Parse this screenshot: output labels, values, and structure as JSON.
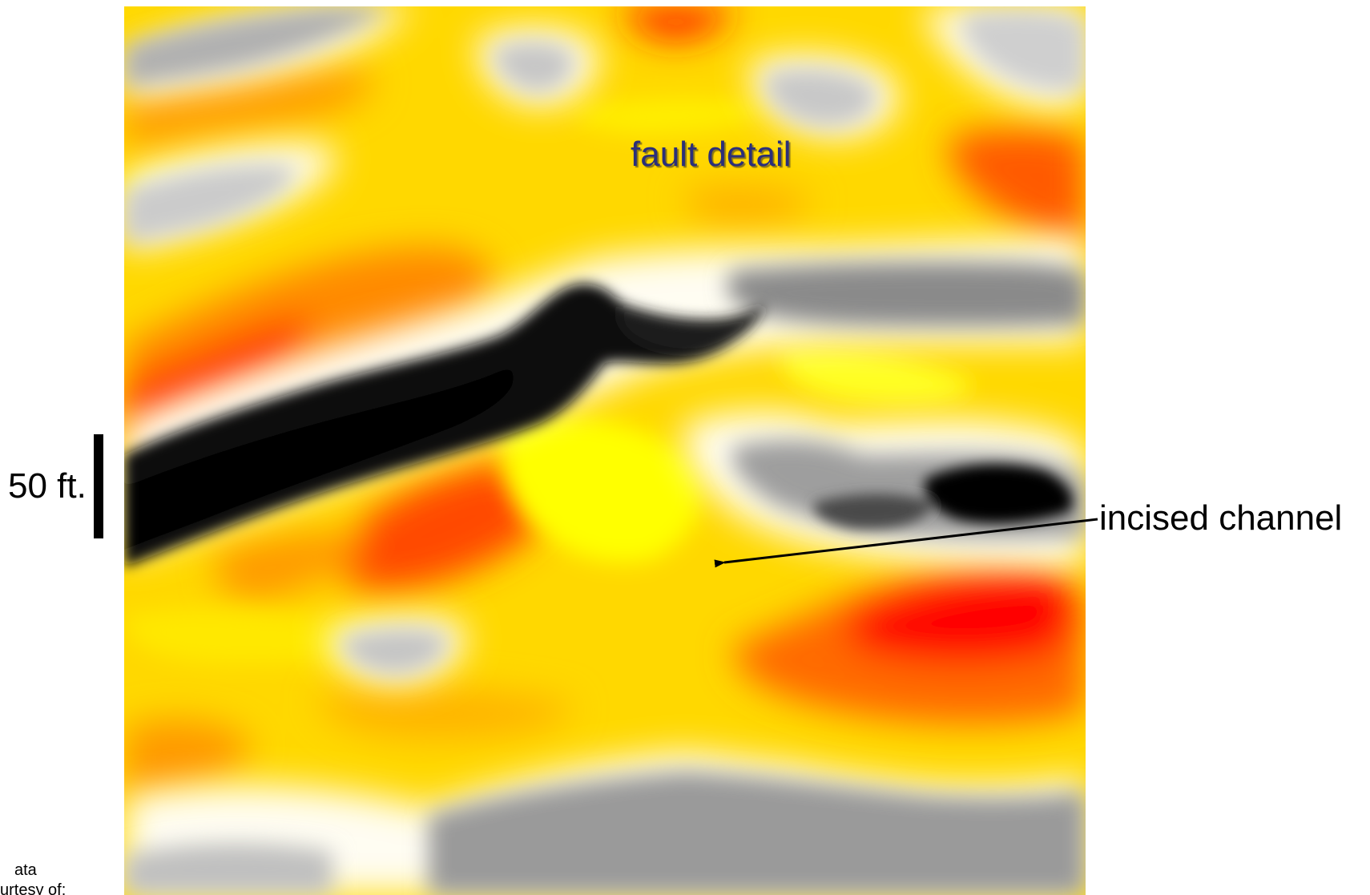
{
  "annotations": {
    "fault_label": "fault detail",
    "scale_label": "50 ft.",
    "channel_label": "incised channel"
  },
  "credit": {
    "line1": "ata",
    "line2": "urtesy of:"
  },
  "colors": {
    "peak_strong": "#ff0000",
    "peak_mid": "#ff8c00",
    "peak_weak": "#ffff00",
    "zero": "#ffffff",
    "trough_weak": "#c8c8c8",
    "trough_strong": "#000000"
  }
}
